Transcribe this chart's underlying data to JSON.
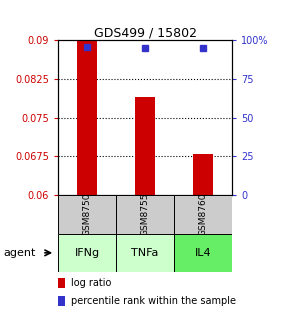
{
  "title": "GDS499 / 15802",
  "samples": [
    "GSM8750",
    "GSM8755",
    "GSM8760"
  ],
  "agents": [
    "IFNg",
    "TNFa",
    "IL4"
  ],
  "log_ratios": [
    0.09,
    0.079,
    0.068
  ],
  "percentile_ranks": [
    96,
    95,
    95
  ],
  "ylim_left": [
    0.06,
    0.09
  ],
  "ylim_right": [
    0,
    100
  ],
  "yticks_left": [
    0.06,
    0.0675,
    0.075,
    0.0825,
    0.09
  ],
  "yticks_right": [
    0,
    25,
    50,
    75,
    100
  ],
  "ytick_labels_left": [
    "0.06",
    "0.0675",
    "0.075",
    "0.0825",
    "0.09"
  ],
  "ytick_labels_right": [
    "0",
    "25",
    "50",
    "75",
    "100%"
  ],
  "baseline": 0.06,
  "bar_color": "#cc0000",
  "dot_color": "#3333cc",
  "sample_box_color": "#cccccc",
  "agent_colors": [
    "#ccffcc",
    "#ccffcc",
    "#66ee66"
  ],
  "left_axis_color": "#cc0000",
  "right_axis_color": "#3333cc",
  "legend_log_ratio_color": "#cc0000",
  "legend_percentile_color": "#3333cc"
}
